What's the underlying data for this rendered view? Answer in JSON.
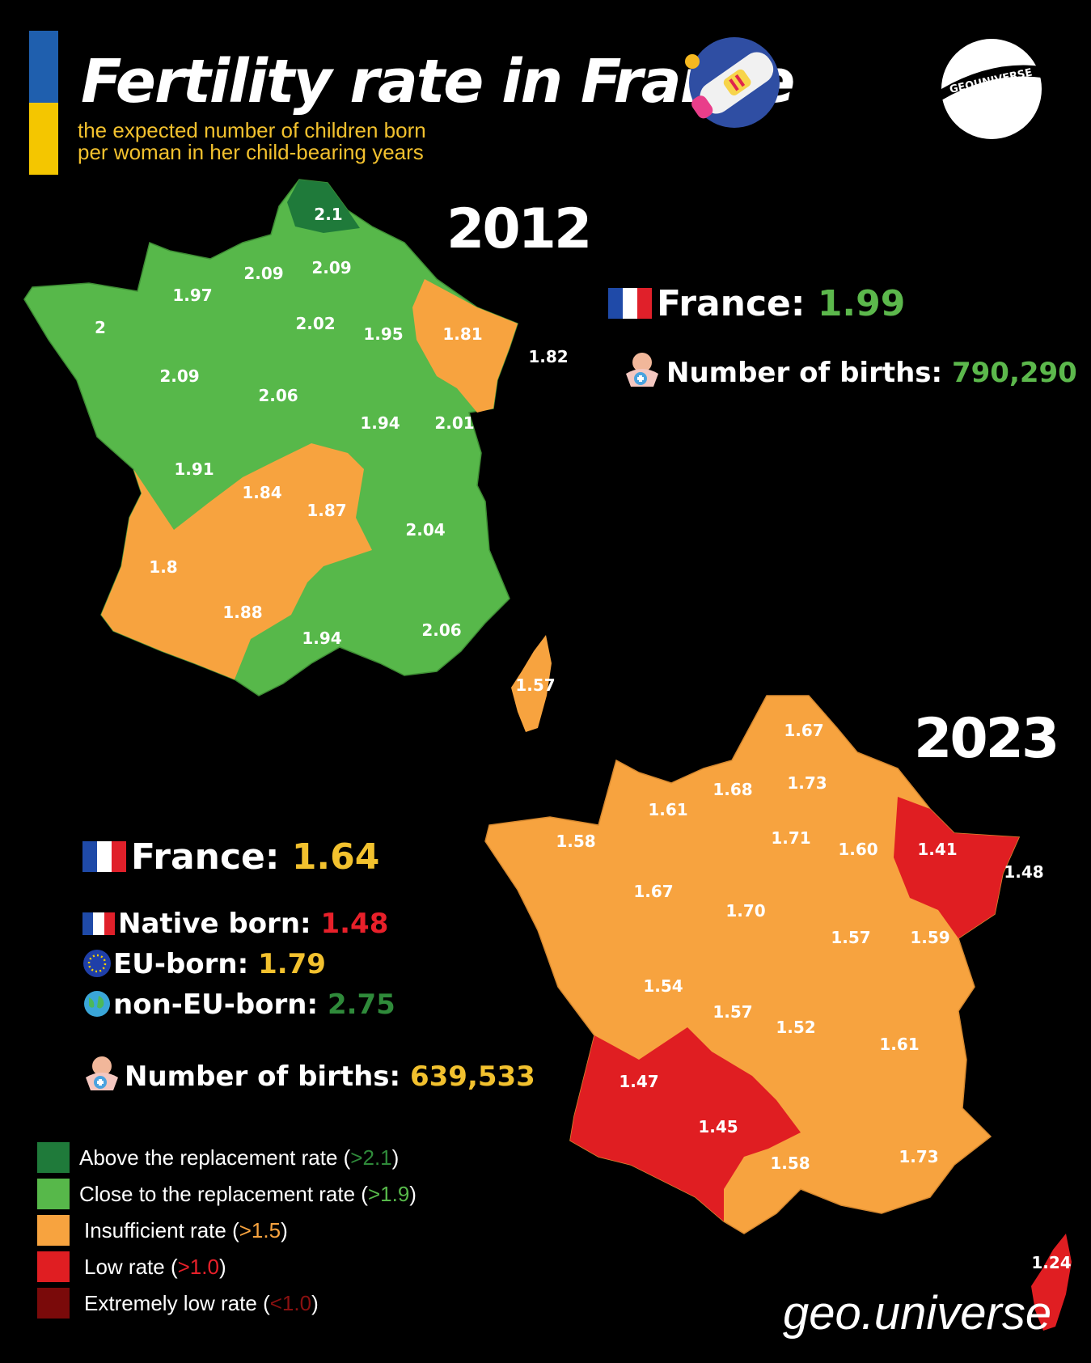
{
  "header": {
    "title": "Fertility rate in France",
    "subtitle_line1": "the expected number of children born",
    "subtitle_line2": "per woman in her child-bearing years",
    "logo_text": "GEOUNIVERSE"
  },
  "map_2012": {
    "year": "2012",
    "france_label": "France",
    "france_value": "1.99",
    "births_label": "Number of births:",
    "births_value": "790,290",
    "regions": [
      "2.1",
      "2.09",
      "2.09",
      "1.97",
      "2",
      "2.02",
      "1.95",
      "1.81",
      "1.82",
      "2.09",
      "2.06",
      "1.94",
      "2.01",
      "1.91",
      "1.84",
      "1.87",
      "2.04",
      "1.8",
      "1.88",
      "1.94",
      "2.06",
      "1.57"
    ]
  },
  "map_2023": {
    "year": "2023",
    "france_label": "France",
    "france_value": "1.64",
    "native_label": "Native born:",
    "native_value": "1.48",
    "eu_label": "EU-born:",
    "eu_value": "1.79",
    "noneu_label": "non-EU-born:",
    "noneu_value": "2.75",
    "births_label": "Number of births:",
    "births_value": "639,533",
    "regions": [
      "1.67",
      "1.68",
      "1.73",
      "1.61",
      "1.71",
      "1.58",
      "1.60",
      "1.41",
      "1.48",
      "1.67",
      "1.70",
      "1.57",
      "1.59",
      "1.54",
      "1.57",
      "1.52",
      "1.61",
      "1.47",
      "1.45",
      "1.58",
      "1.73",
      "1.24"
    ]
  },
  "legend": [
    {
      "label": "Above the replacement rate (",
      "value": ">2.1",
      "close": ")",
      "color": "#1f7a3a"
    },
    {
      "label": "Close to the replacement rate (",
      "value": ">1.9",
      "close": ")",
      "color": "#57b84a"
    },
    {
      "label": "Insufficient rate (",
      "value": ">1.5",
      "close": ")",
      "color": "#f7a33f"
    },
    {
      "label": "Low rate (",
      "value": ">1.0",
      "close": ")",
      "color": "#e01e22"
    },
    {
      "label": "Extremely low rate (",
      "value": "<1.0",
      "close": ")",
      "color": "#7a0a0a"
    }
  ],
  "footer": "geo.universe"
}
